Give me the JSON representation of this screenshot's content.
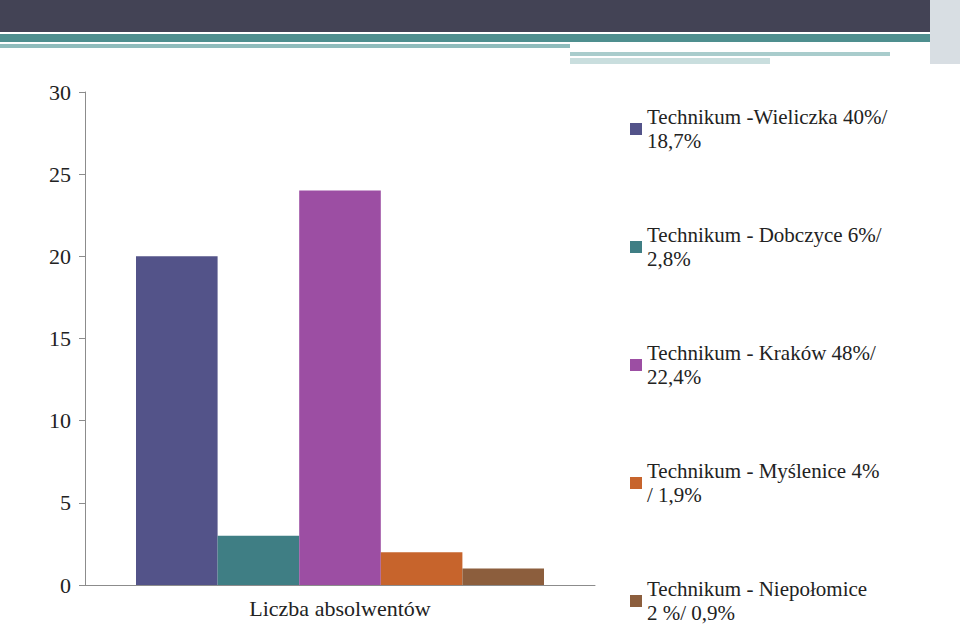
{
  "chart_data": {
    "type": "bar",
    "categories": [
      "Liczba absolwentów"
    ],
    "series": [
      {
        "name": "Technikum -Wieliczka 40%/18,7%",
        "color": "#535389",
        "values": [
          20
        ]
      },
      {
        "name": "Technikum - Dobczyce 6%/ 2,8%",
        "color": "#3f7e84",
        "values": [
          3
        ]
      },
      {
        "name": "Technikum - Kraków 48%/ 22,4%",
        "color": "#9c4ea3",
        "values": [
          24
        ]
      },
      {
        "name": "Technikum - Myślenice 4%/ 1,9%",
        "color": "#c7642c",
        "values": [
          2
        ]
      },
      {
        "name": "Technikum - Niepołomice 2 %/ 0,9%",
        "color": "#8c5e3d",
        "values": [
          1
        ]
      }
    ],
    "ylim": [
      0,
      30
    ],
    "yticks": [
      0,
      5,
      10,
      15,
      20,
      25,
      30
    ],
    "grid": false,
    "legend": "right"
  }
}
